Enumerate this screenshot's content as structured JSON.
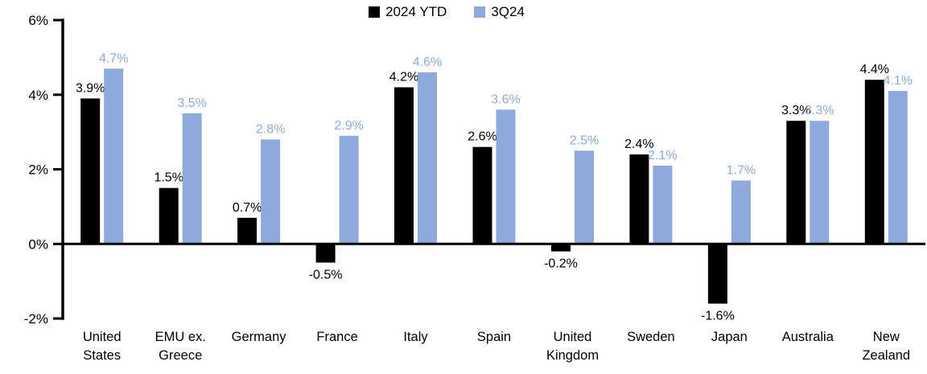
{
  "chart_data": {
    "type": "bar",
    "title": "",
    "xlabel": "",
    "ylabel": "",
    "categories": [
      "United States",
      "EMU ex. Greece",
      "Germany",
      "France",
      "Italy",
      "Spain",
      "United Kingdom",
      "Sweden",
      "Japan",
      "Australia",
      "New Zealand"
    ],
    "category_lines": [
      [
        "United",
        "States"
      ],
      [
        "EMU ex.",
        "Greece"
      ],
      [
        "Germany"
      ],
      [
        "France"
      ],
      [
        "Italy"
      ],
      [
        "Spain"
      ],
      [
        "United",
        "Kingdom"
      ],
      [
        "Sweden"
      ],
      [
        "Japan"
      ],
      [
        "Australia"
      ],
      [
        "New",
        "Zealand"
      ]
    ],
    "series": [
      {
        "name": "2024 YTD",
        "color": "#000000",
        "label_color": "#000000",
        "values": [
          3.9,
          1.5,
          0.7,
          -0.5,
          4.2,
          2.6,
          -0.2,
          2.4,
          -1.6,
          3.3,
          4.4
        ],
        "labels": [
          "3.9%",
          "1.5%",
          "0.7%",
          "-0.5%",
          "4.2%",
          "2.6%",
          "-0.2%",
          "2.4%",
          "-1.6%",
          "3.3%",
          "4.4%"
        ]
      },
      {
        "name": "3Q24",
        "color": "#8EAADC",
        "label_color": "#8EAADC",
        "values": [
          4.7,
          3.5,
          2.8,
          2.9,
          4.6,
          3.6,
          2.5,
          2.1,
          1.7,
          3.3,
          4.1
        ],
        "labels": [
          "4.7%",
          "3.5%",
          "2.8%",
          "2.9%",
          "4.6%",
          "3.6%",
          "2.5%",
          "2.1%",
          "1.7%",
          "3.3%",
          "4.1%"
        ]
      }
    ],
    "ylim": [
      -2,
      6
    ],
    "yticks": [
      {
        "value": 6,
        "label": "6%"
      },
      {
        "value": 4,
        "label": "4%"
      },
      {
        "value": 2,
        "label": "2%"
      },
      {
        "value": 0,
        "label": "0%"
      },
      {
        "value": -2,
        "label": "-2%"
      }
    ],
    "grid": false,
    "legend_position": "top-center",
    "value_labels_shown": true
  }
}
